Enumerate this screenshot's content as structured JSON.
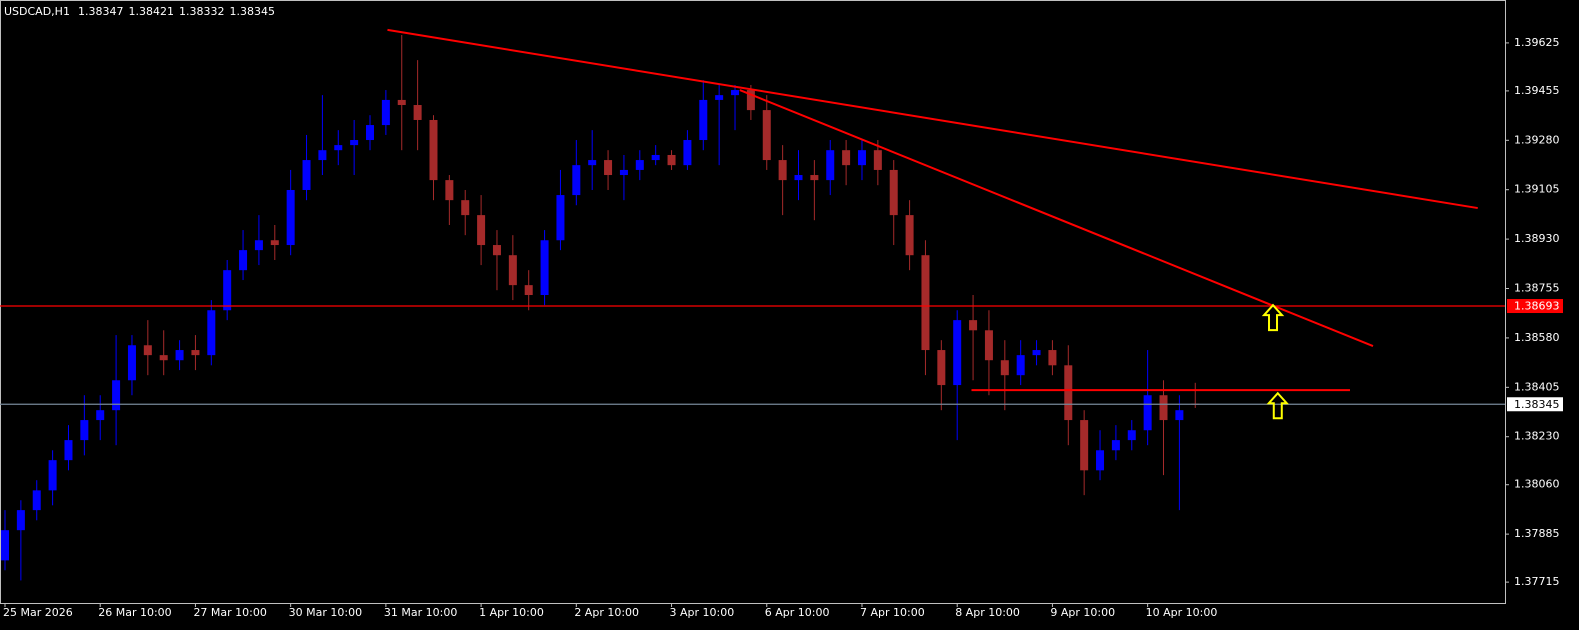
{
  "chart_data": {
    "type": "candlestick",
    "title": "USDCAD,H1",
    "categories": [
      "25 Mar 2026",
      null,
      null,
      null,
      null,
      null,
      "26 Mar 10:00",
      null,
      null,
      null,
      null,
      null,
      "27 Mar 10:00",
      null,
      null,
      null,
      null,
      null,
      "30 Mar 10:00",
      null,
      null,
      null,
      null,
      null,
      "31 Mar 10:00",
      null,
      null,
      null,
      null,
      null,
      "1 Apr 10:00",
      null,
      null,
      null,
      null,
      null,
      "2 Apr 10:00",
      null,
      null,
      null,
      null,
      null,
      "3 Apr 10:00",
      null,
      null,
      null,
      null,
      null,
      "6 Apr 10:00",
      null,
      null,
      null,
      null,
      null,
      "7 Apr 10:00",
      null,
      null,
      null,
      null,
      null,
      "8 Apr 10:00",
      null,
      null,
      null,
      null,
      null,
      "9 Apr 10:00",
      null,
      null,
      null,
      null,
      null,
      "10 Apr 10:00",
      null,
      null,
      null
    ],
    "open": [
      1.37792,
      1.37899,
      1.3797,
      1.3804,
      1.38147,
      1.38218,
      1.38289,
      1.38324,
      1.3843,
      1.38554,
      1.38519,
      1.38501,
      1.38537,
      1.38519,
      1.38678,
      1.3882,
      1.38891,
      1.38926,
      1.38909,
      1.39104,
      1.3921,
      1.39245,
      1.39263,
      1.39281,
      1.39334,
      1.39423,
      1.39405,
      1.39352,
      1.39139,
      1.39068,
      1.39015,
      1.38909,
      1.38873,
      1.38767,
      1.38732,
      1.38926,
      1.39086,
      1.39192,
      1.3921,
      1.39157,
      1.39175,
      1.3921,
      1.39228,
      1.39192,
      1.39281,
      1.39423,
      1.3944,
      1.39458,
      1.39387,
      1.3921,
      1.39139,
      1.39157,
      1.39139,
      1.39245,
      1.39192,
      1.39245,
      1.39175,
      1.39015,
      1.38873,
      1.38537,
      1.38413,
      1.38643,
      1.38607,
      1.38501,
      1.38448,
      1.38519,
      1.38537,
      1.38483,
      1.38289,
      1.38111,
      1.38182,
      1.38218,
      1.38253,
      1.38377,
      1.38289,
      1.38347
    ],
    "high": [
      1.3797,
      1.38005,
      1.38076,
      1.38182,
      1.38271,
      1.38377,
      1.38377,
      1.3859,
      1.3859,
      1.38643,
      1.38607,
      1.38572,
      1.3859,
      1.38714,
      1.38856,
      1.38962,
      1.39015,
      1.3898,
      1.39175,
      1.39299,
      1.3944,
      1.39316,
      1.39352,
      1.39369,
      1.39458,
      1.39653,
      1.39564,
      1.39369,
      1.39157,
      1.39104,
      1.39086,
      1.38962,
      1.38944,
      1.3882,
      1.38962,
      1.39175,
      1.39281,
      1.39316,
      1.39245,
      1.39228,
      1.39245,
      1.39263,
      1.39245,
      1.39316,
      1.39493,
      1.39476,
      1.39476,
      1.39476,
      1.3944,
      1.39263,
      1.39245,
      1.3921,
      1.39281,
      1.39281,
      1.39281,
      1.39281,
      1.3921,
      1.39068,
      1.38926,
      1.38572,
      1.38678,
      1.38732,
      1.38678,
      1.38572,
      1.38572,
      1.38572,
      1.38572,
      1.38554,
      1.38324,
      1.38253,
      1.38271,
      1.38289,
      1.38537,
      1.3843,
      1.38377,
      1.38421
    ],
    "low": [
      1.37757,
      1.37721,
      1.37934,
      1.37987,
      1.38111,
      1.38164,
      1.38218,
      1.382,
      1.38377,
      1.38448,
      1.38448,
      1.38466,
      1.38466,
      1.38483,
      1.38643,
      1.38785,
      1.38838,
      1.38856,
      1.38873,
      1.39068,
      1.39157,
      1.39192,
      1.39157,
      1.39245,
      1.39299,
      1.39245,
      1.39245,
      1.39068,
      1.3898,
      1.38944,
      1.38838,
      1.38749,
      1.38714,
      1.38678,
      1.38696,
      1.38891,
      1.3905,
      1.39104,
      1.39104,
      1.39068,
      1.39139,
      1.39192,
      1.39175,
      1.39175,
      1.39245,
      1.39192,
      1.39316,
      1.39352,
      1.39175,
      1.39015,
      1.39068,
      1.38997,
      1.39086,
      1.39121,
      1.39139,
      1.39121,
      1.38909,
      1.3882,
      1.38448,
      1.38324,
      1.38218,
      1.3843,
      1.38377,
      1.38324,
      1.38413,
      1.38483,
      1.38448,
      1.382,
      1.38023,
      1.38076,
      1.38147,
      1.38182,
      1.382,
      1.38094,
      1.3797,
      1.38332
    ],
    "close": [
      1.37899,
      1.3797,
      1.3804,
      1.38147,
      1.38218,
      1.38289,
      1.38324,
      1.3843,
      1.38554,
      1.38519,
      1.38501,
      1.38537,
      1.38519,
      1.38678,
      1.3882,
      1.38891,
      1.38926,
      1.38909,
      1.39104,
      1.3921,
      1.39245,
      1.39263,
      1.39281,
      1.39334,
      1.39423,
      1.39405,
      1.39352,
      1.39139,
      1.39068,
      1.39015,
      1.38909,
      1.38873,
      1.38767,
      1.38732,
      1.38926,
      1.39086,
      1.39192,
      1.3921,
      1.39157,
      1.39175,
      1.3921,
      1.39228,
      1.39192,
      1.39281,
      1.39423,
      1.3944,
      1.39458,
      1.39387,
      1.3921,
      1.39139,
      1.39157,
      1.39139,
      1.39245,
      1.39192,
      1.39245,
      1.39175,
      1.39015,
      1.38873,
      1.38537,
      1.38413,
      1.38643,
      1.38607,
      1.38501,
      1.38448,
      1.38519,
      1.38537,
      1.38483,
      1.38289,
      1.38111,
      1.38182,
      1.38218,
      1.38253,
      1.38377,
      1.38289,
      1.38324,
      1.38345
    ],
    "up_color": "#0000ff",
    "down_color": "#a52a2a",
    "ylim": [
      1.37641,
      1.39777
    ],
    "yticks": [
      1.39625,
      1.39455,
      {
        "value": 1.3928,
        "label": "1.39280"
      },
      1.39105,
      {
        "value": 1.3893,
        "label": "1.38930"
      },
      1.38755,
      {
        "value": 1.3858,
        "label": "1.38580"
      },
      1.38405,
      {
        "value": 1.3823,
        "label": "1.38230"
      },
      {
        "value": 1.3806,
        "label": "1.38060"
      },
      1.37885,
      1.37715
    ],
    "hlines": [
      {
        "value": 1.38693,
        "color": "#ff0000",
        "label_color": "#ffffff"
      },
      {
        "value": 1.38345,
        "color": "#778899",
        "label_color": "#000000",
        "label_background": "#ffffff"
      }
    ],
    "trendlines": [
      {
        "x": [
          24.1,
          92.8
        ],
        "y": [
          1.39671,
          1.3904
        ],
        "color": "#ff0000"
      },
      {
        "x": [
          46.3,
          86.2
        ],
        "y": [
          1.39458,
          1.38551
        ],
        "color": "#ff0000"
      },
      {
        "x": [
          60.9,
          84.75
        ],
        "y": [
          1.38395,
          1.38395
        ],
        "color": "#ff0000"
      }
    ],
    "arrows": [
      {
        "x": 79.9,
        "y": 1.38696,
        "color": "#ffff00"
      },
      {
        "x": 80.2,
        "y": 1.38384,
        "color": "#ffff00"
      }
    ]
  }
}
